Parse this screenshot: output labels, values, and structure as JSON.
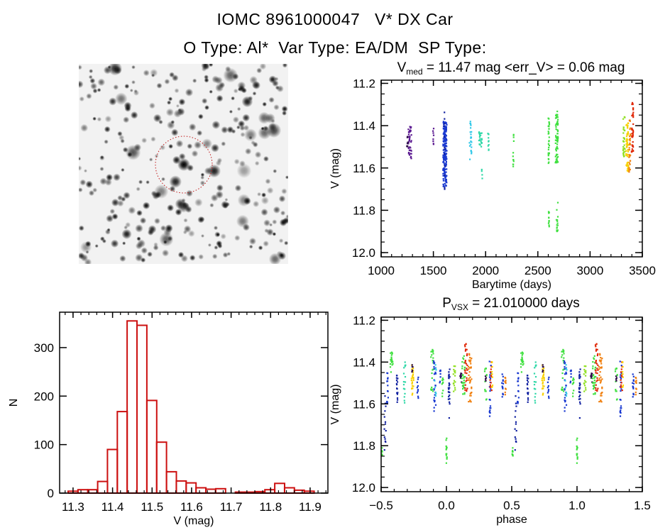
{
  "header": {
    "title": "IOMC 8961000047   V* DX Car",
    "subtitle": "O Type: Al*  Var Type: EA/DM  SP Type:"
  },
  "colors": {
    "histogram": "#cc1010",
    "circle": "#c01818",
    "purple": "#5a1890",
    "dark": "#30104a",
    "blue": "#1838d0",
    "darkblue": "#1020a0",
    "cyan": "#30c8e8",
    "teal": "#30d8a8",
    "green": "#40e040",
    "lime": "#90e020",
    "yellow": "#f8d000",
    "orange": "#f08010",
    "red": "#e02808"
  },
  "chart_data": [
    {
      "id": "lightcurve",
      "type": "scatter",
      "title_main": "V",
      "title_sub": "med",
      "title_rest": " = 11.47 mag <err_V> = 0.06 mag",
      "xlabel": "Barytime (days)",
      "ylabel": "V (mag)",
      "xlim": [
        1000,
        3500
      ],
      "ylim": [
        11.185,
        12.02
      ],
      "y_inverted": true,
      "xticks": [
        1000,
        1500,
        2000,
        2500,
        3000,
        3500
      ],
      "xtick_labels": [
        "1000",
        "1500",
        "2000",
        "2500",
        "3000",
        "3500"
      ],
      "yticks": [
        11.2,
        11.4,
        11.6,
        11.8,
        12.0
      ],
      "ytick_labels": [
        "11.2",
        "11.4",
        "11.6",
        "11.8",
        "12.0"
      ],
      "clusters": [
        {
          "x": 1275,
          "dx": 15,
          "vmin": 11.4,
          "vmax": 11.56,
          "n": 40,
          "color": "purple"
        },
        {
          "x": 1250,
          "dx": 5,
          "vmin": 11.44,
          "vmax": 11.5,
          "n": 8,
          "color": "dark"
        },
        {
          "x": 1500,
          "dx": 5,
          "vmin": 11.4,
          "vmax": 11.49,
          "n": 8,
          "color": "purple"
        },
        {
          "x": 1610,
          "dx": 18,
          "vmin": 11.38,
          "vmax": 11.69,
          "n": 170,
          "color": "blue"
        },
        {
          "x": 1605,
          "dx": 3,
          "vmin": 11.31,
          "vmax": 11.82,
          "n": 12,
          "color": "darkblue"
        },
        {
          "x": 1855,
          "dx": 10,
          "vmin": 11.38,
          "vmax": 11.57,
          "n": 22,
          "color": "cyan"
        },
        {
          "x": 1950,
          "dx": 14,
          "vmin": 11.43,
          "vmax": 11.5,
          "n": 22,
          "color": "teal"
        },
        {
          "x": 1965,
          "dx": 3,
          "vmin": 11.59,
          "vmax": 11.66,
          "n": 4,
          "color": "teal"
        },
        {
          "x": 2025,
          "dx": 5,
          "vmin": 11.43,
          "vmax": 11.52,
          "n": 10,
          "color": "teal"
        },
        {
          "x": 2265,
          "dx": 4,
          "vmin": 11.44,
          "vmax": 11.6,
          "n": 12,
          "color": "green"
        },
        {
          "x": 2605,
          "dx": 5,
          "vmin": 11.35,
          "vmax": 11.58,
          "n": 30,
          "color": "green"
        },
        {
          "x": 2605,
          "dx": 3,
          "vmin": 11.8,
          "vmax": 11.88,
          "n": 10,
          "color": "green"
        },
        {
          "x": 2680,
          "dx": 12,
          "vmin": 11.33,
          "vmax": 11.58,
          "n": 65,
          "color": "green"
        },
        {
          "x": 2685,
          "dx": 8,
          "vmin": 11.76,
          "vmax": 11.9,
          "n": 16,
          "color": "green"
        },
        {
          "x": 3325,
          "dx": 10,
          "vmin": 11.34,
          "vmax": 11.55,
          "n": 30,
          "color": "lime"
        },
        {
          "x": 3355,
          "dx": 12,
          "vmin": 11.38,
          "vmax": 11.62,
          "n": 55,
          "color": "yellow"
        },
        {
          "x": 3380,
          "dx": 8,
          "vmin": 11.37,
          "vmax": 11.62,
          "n": 30,
          "color": "orange"
        },
        {
          "x": 3405,
          "dx": 8,
          "vmin": 11.29,
          "vmax": 11.53,
          "n": 40,
          "color": "red"
        }
      ]
    },
    {
      "id": "histogram",
      "type": "bar",
      "xlabel": "V (mag)",
      "ylabel": "N",
      "xlim": [
        11.266,
        11.945
      ],
      "ylim": [
        0,
        373
      ],
      "bin_start": 11.2875,
      "bin_width": 0.0249,
      "values": [
        4,
        7,
        7,
        24,
        90,
        168,
        355,
        346,
        191,
        105,
        44,
        25,
        21,
        11,
        8,
        9,
        0,
        2,
        2,
        3,
        7,
        20,
        11,
        6,
        4
      ],
      "xticks": [
        11.3,
        11.4,
        11.5,
        11.6,
        11.7,
        11.8,
        11.9
      ],
      "xtick_labels": [
        "11.3",
        "11.4",
        "11.5",
        "11.6",
        "11.7",
        "11.8",
        "11.9"
      ],
      "yticks": [
        0,
        100,
        200,
        300
      ],
      "ytick_labels": [
        "0",
        "100",
        "200",
        "300"
      ]
    },
    {
      "id": "phased",
      "type": "scatter",
      "title_main": "P",
      "title_sub": "VSX",
      "title_rest": " = 21.010000 days",
      "xlabel": "phase",
      "ylabel": "V (mag)",
      "period_days": 21.01,
      "xlim": [
        -0.5,
        1.5
      ],
      "ylim": [
        11.185,
        12.02
      ],
      "y_inverted": true,
      "xticks": [
        -0.5,
        0.0,
        0.5,
        1.0,
        1.5
      ],
      "xtick_labels": [
        "−0.5",
        "0.0",
        "0.5",
        "1.0",
        "1.5"
      ],
      "yticks": [
        11.2,
        11.4,
        11.6,
        11.8,
        12.0
      ],
      "ytick_labels": [
        "11.2",
        "11.4",
        "11.6",
        "11.8",
        "12.0"
      ],
      "clusters": [
        {
          "x": -0.47,
          "dx": 0.006,
          "vmin": 11.54,
          "vmax": 11.82,
          "n": 14,
          "color": "darkblue"
        },
        {
          "x": -0.495,
          "dx": 0.004,
          "vmin": 11.8,
          "vmax": 11.87,
          "n": 10,
          "color": "green"
        },
        {
          "x": -0.45,
          "dx": 0.006,
          "vmin": 11.45,
          "vmax": 11.6,
          "n": 14,
          "color": "blue"
        },
        {
          "x": -0.42,
          "dx": 0.01,
          "vmin": 11.35,
          "vmax": 11.45,
          "n": 18,
          "color": "green"
        },
        {
          "x": -0.38,
          "dx": 0.006,
          "vmin": 11.45,
          "vmax": 11.6,
          "n": 16,
          "color": "darkblue"
        },
        {
          "x": -0.32,
          "dx": 0.008,
          "vmin": 11.38,
          "vmax": 11.6,
          "n": 16,
          "color": "teal"
        },
        {
          "x": -0.26,
          "dx": 0.008,
          "vmin": 11.38,
          "vmax": 11.56,
          "n": 24,
          "color": "yellow"
        },
        {
          "x": -0.26,
          "dx": 0.004,
          "vmin": 11.39,
          "vmax": 11.5,
          "n": 6,
          "color": "dark"
        },
        {
          "x": -0.22,
          "dx": 0.005,
          "vmin": 11.47,
          "vmax": 11.58,
          "n": 10,
          "color": "blue"
        },
        {
          "x": -0.11,
          "dx": 0.01,
          "vmin": 11.34,
          "vmax": 11.55,
          "n": 22,
          "color": "green"
        },
        {
          "x": -0.09,
          "dx": 0.008,
          "vmin": 11.38,
          "vmax": 11.64,
          "n": 24,
          "color": "blue"
        },
        {
          "x": -0.085,
          "dx": 0.006,
          "vmin": 11.38,
          "vmax": 11.58,
          "n": 8,
          "color": "cyan"
        },
        {
          "x": -0.05,
          "dx": 0.005,
          "vmin": 11.43,
          "vmax": 11.5,
          "n": 8,
          "color": "blue"
        },
        {
          "x": -0.03,
          "dx": 0.006,
          "vmin": 11.47,
          "vmax": 11.58,
          "n": 10,
          "color": "green"
        },
        {
          "x": 0.02,
          "dx": 0.005,
          "vmin": 11.42,
          "vmax": 11.68,
          "n": 24,
          "color": "darkblue"
        },
        {
          "x": 0.0,
          "dx": 0.004,
          "vmin": 11.76,
          "vmax": 11.89,
          "n": 14,
          "color": "green"
        },
        {
          "x": 0.06,
          "dx": 0.008,
          "vmin": 11.41,
          "vmax": 11.54,
          "n": 16,
          "color": "lime"
        },
        {
          "x": 0.11,
          "dx": 0.006,
          "vmin": 11.45,
          "vmax": 11.5,
          "n": 8,
          "color": "dark"
        },
        {
          "x": 0.13,
          "dx": 0.012,
          "vmin": 11.37,
          "vmax": 11.56,
          "n": 30,
          "color": "green"
        },
        {
          "x": 0.15,
          "dx": 0.01,
          "vmin": 11.29,
          "vmax": 11.55,
          "n": 30,
          "color": "red"
        },
        {
          "x": 0.18,
          "dx": 0.012,
          "vmin": 11.36,
          "vmax": 11.59,
          "n": 35,
          "color": "orange"
        },
        {
          "x": 0.3,
          "dx": 0.008,
          "vmin": 11.42,
          "vmax": 11.6,
          "n": 12,
          "color": "green"
        },
        {
          "x": 0.3,
          "dx": 0.004,
          "vmin": 11.46,
          "vmax": 11.49,
          "n": 5,
          "color": "dark"
        },
        {
          "x": 0.335,
          "dx": 0.006,
          "vmin": 11.38,
          "vmax": 11.67,
          "n": 20,
          "color": "blue"
        },
        {
          "x": 0.34,
          "dx": 0.006,
          "vmin": 11.38,
          "vmax": 11.55,
          "n": 14,
          "color": "red"
        },
        {
          "x": 0.35,
          "dx": 0.004,
          "vmin": 11.39,
          "vmax": 11.52,
          "n": 10,
          "color": "yellow"
        },
        {
          "x": 0.43,
          "dx": 0.006,
          "vmin": 11.41,
          "vmax": 11.57,
          "n": 14,
          "color": "blue"
        },
        {
          "x": 0.45,
          "dx": 0.005,
          "vmin": 11.47,
          "vmax": 11.61,
          "n": 10,
          "color": "orange"
        }
      ]
    }
  ]
}
